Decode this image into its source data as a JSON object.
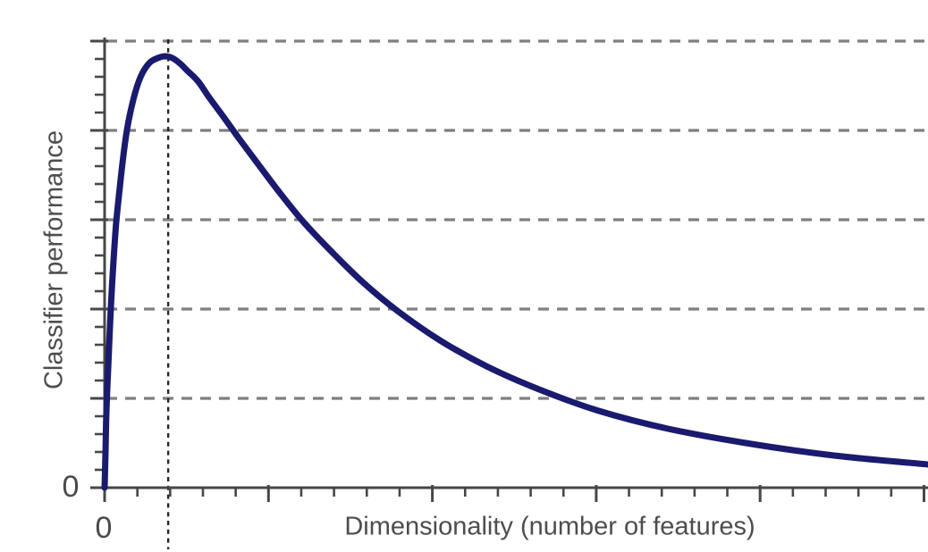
{
  "chart_data": {
    "type": "line",
    "title": "",
    "xlabel": "Dimensionality (number of features)",
    "ylabel": "Classifier performance",
    "x_origin_tick_label": "0",
    "y_origin_tick_label": "0",
    "xlim": [
      0,
      25.12
    ],
    "ylim": [
      0,
      5.05
    ],
    "grid": true,
    "legend": false,
    "gridline_y_values": [
      1,
      2,
      3,
      4,
      5
    ],
    "x_major_tick_step": 5,
    "x_minor_tick_step": 1,
    "y_major_tick_step": 1,
    "y_minor_tick_step": 0.2,
    "optimal_dimensionality_marker_x": 1.94,
    "series": [
      {
        "name": "classifier-performance-curve",
        "points": [
          [
            0,
            0
          ],
          [
            0.03,
            0.44
          ],
          [
            0.05,
            0.78
          ],
          [
            0.08,
            1.09
          ],
          [
            0.14,
            1.6
          ],
          [
            0.19,
            2.02
          ],
          [
            0.27,
            2.53
          ],
          [
            0.35,
            2.95
          ],
          [
            0.44,
            3.28
          ],
          [
            0.55,
            3.65
          ],
          [
            0.68,
            4.0
          ],
          [
            0.82,
            4.26
          ],
          [
            0.98,
            4.48
          ],
          [
            1.15,
            4.64
          ],
          [
            1.38,
            4.76
          ],
          [
            1.62,
            4.81
          ],
          [
            1.85,
            4.83
          ],
          [
            2.07,
            4.81
          ],
          [
            2.3,
            4.75
          ],
          [
            2.52,
            4.67
          ],
          [
            2.85,
            4.55
          ],
          [
            3.19,
            4.37
          ],
          [
            3.63,
            4.15
          ],
          [
            4.12,
            3.9
          ],
          [
            4.69,
            3.62
          ],
          [
            5.35,
            3.3
          ],
          [
            6.08,
            2.97
          ],
          [
            6.93,
            2.64
          ],
          [
            7.88,
            2.3
          ],
          [
            8.97,
            1.97
          ],
          [
            10.23,
            1.65
          ],
          [
            11.65,
            1.36
          ],
          [
            13.26,
            1.1
          ],
          [
            15.08,
            0.86
          ],
          [
            17.19,
            0.66
          ],
          [
            19.56,
            0.5
          ],
          [
            22.26,
            0.36
          ],
          [
            25.12,
            0.26
          ]
        ]
      }
    ]
  },
  "colors": {
    "curve": "#1a1a6e",
    "gridline": "#7f7f7f",
    "axis": "#474747",
    "marker_line": "#262626",
    "label": "#4d4d4d",
    "background": "#ffffff"
  }
}
